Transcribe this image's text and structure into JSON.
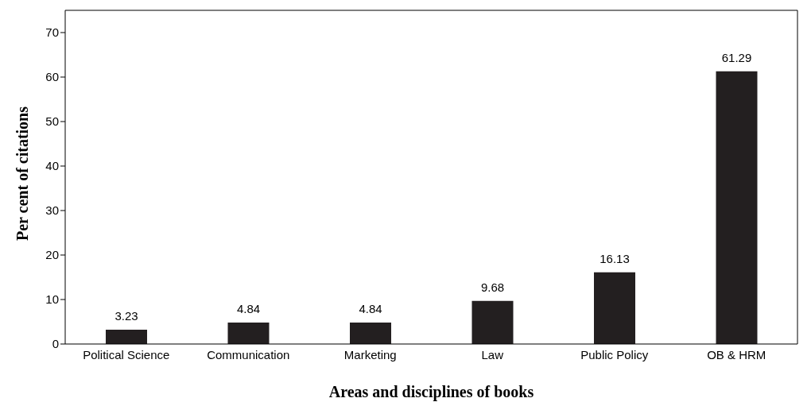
{
  "chart_data": {
    "type": "bar",
    "xlabel": "Areas and disciplines of books",
    "ylabel": "Per cent of citations",
    "categories": [
      "Political Science",
      "Communication",
      "Marketing",
      "Law",
      "Public Policy",
      "OB & HRM"
    ],
    "values": [
      3.23,
      4.84,
      4.84,
      9.68,
      16.13,
      61.29
    ],
    "color": "#231f20",
    "ylim": [
      0,
      75
    ],
    "yticks": [
      0,
      10,
      20,
      30,
      40,
      50,
      60,
      70
    ],
    "grid": false,
    "data_labels": true
  }
}
